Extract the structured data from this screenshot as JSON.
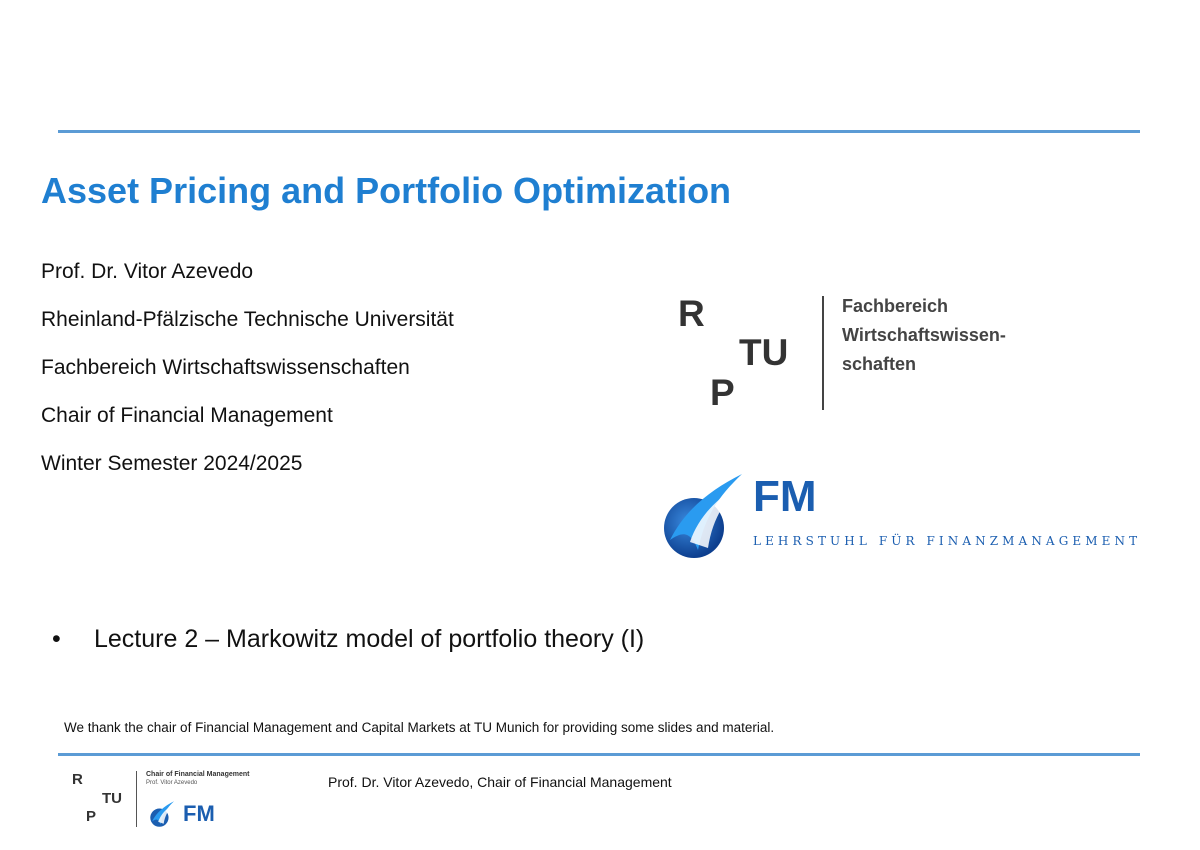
{
  "slide": {
    "title": "Asset Pricing and Portfolio Optimization",
    "info_lines": [
      "Prof. Dr. Vitor Azevedo",
      "Rheinland-Pfälzische Technische Universität",
      "Fachbereich Wirtschaftswissenschaften",
      "Chair of Financial Management",
      "Winter Semester 2024/2025"
    ],
    "bullet_symbol": "•",
    "bullet_text": "Lecture 2 – Markowitz model of portfolio theory (I)",
    "acknowledgement": "We thank the chair of Financial Management and Capital Markets at TU Munich for providing some slides and material."
  },
  "rptu_logo": {
    "letter_r": "R",
    "letters_tu": "TU",
    "letter_p": "P",
    "department_lines": [
      "Fachbereich",
      "Wirtschaftswissen-",
      "schaften"
    ]
  },
  "fm_logo": {
    "text": "FM",
    "subtitle": "LEHRSTUHL FÜR FINANZMANAGEMENT"
  },
  "footer": {
    "logo_chair": "Chair of Financial Management",
    "logo_prof": "Prof. Vitor Azevedo",
    "logo_fm": "FM",
    "logo_r": "R",
    "logo_tu": "TU",
    "logo_p": "P",
    "text": "Prof. Dr. Vitor Azevedo, Chair of Financial Management"
  },
  "colors": {
    "accent": "#1f7fd1",
    "rule": "#5b9bd5",
    "fm_blue": "#1b5eb0"
  }
}
